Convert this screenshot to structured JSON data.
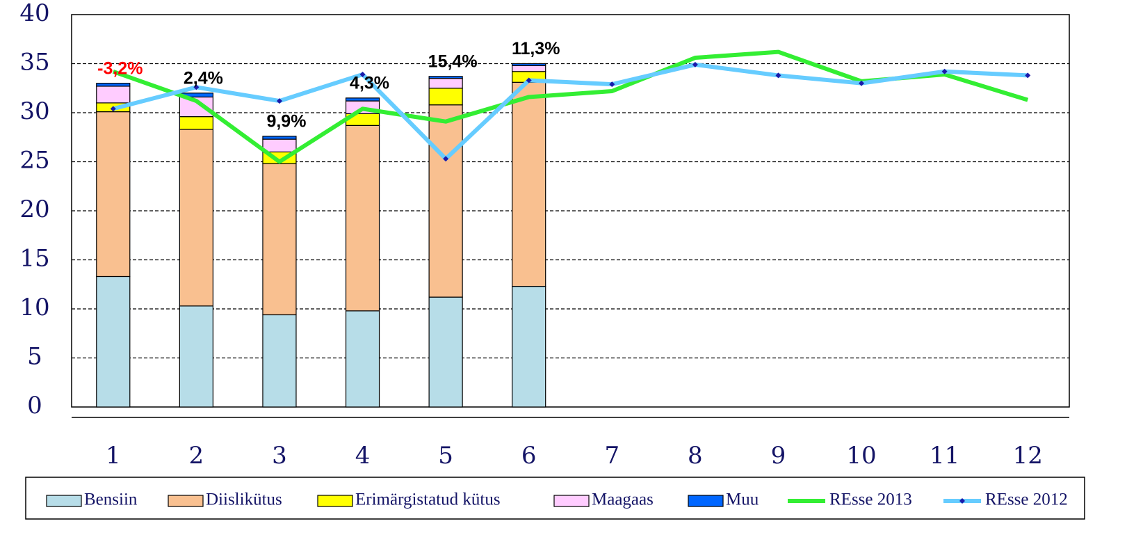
{
  "chart_data": {
    "type": "bar",
    "categories": [
      "1",
      "2",
      "3",
      "4",
      "5",
      "6",
      "7",
      "8",
      "9",
      "10",
      "11",
      "12"
    ],
    "ylim": [
      0,
      40
    ],
    "yticks": [
      0,
      5,
      10,
      15,
      20,
      25,
      30,
      35,
      40
    ],
    "grid": true,
    "stacked": true,
    "legend": "bottom",
    "series": [
      {
        "name": "Bensiin",
        "type": "bar",
        "color": "#b7dde8",
        "values": [
          13.3,
          10.3,
          9.4,
          9.8,
          11.2,
          12.3,
          null,
          null,
          null,
          null,
          null,
          null
        ]
      },
      {
        "name": "Diislikütus",
        "type": "bar",
        "color": "#f9c090",
        "values": [
          16.8,
          18.0,
          15.4,
          18.9,
          19.6,
          20.8,
          null,
          null,
          null,
          null,
          null,
          null
        ]
      },
      {
        "name": "Erimärgistatud kütus",
        "type": "bar",
        "color": "#ffff00",
        "values": [
          0.9,
          1.3,
          1.2,
          1.2,
          1.7,
          1.1,
          null,
          null,
          null,
          null,
          null,
          null
        ]
      },
      {
        "name": "Maagaas",
        "type": "bar",
        "color": "#ffccff",
        "values": [
          1.7,
          2.0,
          1.3,
          1.3,
          1.0,
          0.6,
          null,
          null,
          null,
          null,
          null,
          null
        ]
      },
      {
        "name": "Muu",
        "type": "bar",
        "color": "#0066ff",
        "values": [
          0.3,
          0.4,
          0.3,
          0.3,
          0.2,
          0.2,
          null,
          null,
          null,
          null,
          null,
          null
        ]
      },
      {
        "name": "REsse 2013",
        "type": "line",
        "color": "#33ee33",
        "values": [
          34.2,
          31.2,
          25.0,
          30.4,
          29.1,
          31.6,
          32.2,
          35.6,
          36.2,
          33.2,
          33.9,
          31.3
        ]
      },
      {
        "name": "REsse 2012",
        "type": "line",
        "color": "#66ccff",
        "marker_color": "#1a1aaa",
        "values": [
          30.4,
          32.6,
          31.2,
          33.9,
          25.3,
          33.3,
          32.9,
          34.9,
          33.8,
          33.0,
          34.2,
          33.8
        ]
      }
    ],
    "annotations": [
      "-3,2%",
      "2,4%",
      "9,9%",
      "4,3%",
      "15,4%",
      "11,3%"
    ],
    "annotation_colors": [
      "#ff0000",
      "#000000",
      "#000000",
      "#000000",
      "#000000",
      "#000000"
    ]
  }
}
